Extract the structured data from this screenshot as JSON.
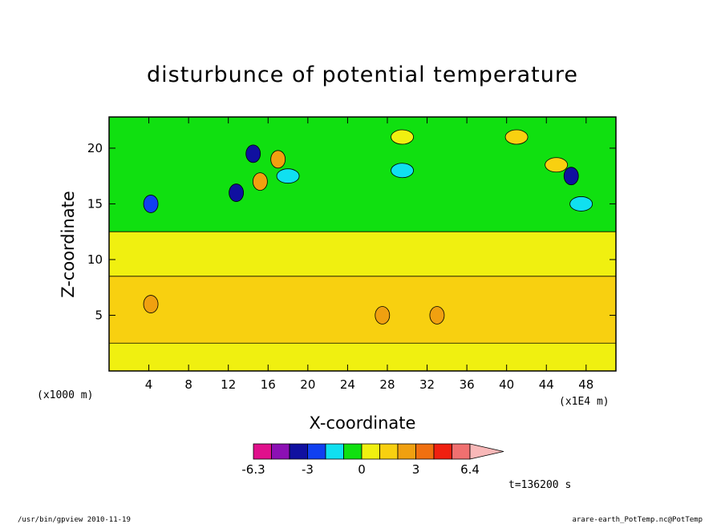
{
  "figure": {
    "title": "disturbunce of potential temperature",
    "time_label": "t=136200 s",
    "footer_left": "/usr/bin/gpview  2010-11-19",
    "footer_right": "arare-earth_PotTemp.nc@PotTemp"
  },
  "chart_data": {
    "type": "heatmap",
    "title": "disturbunce of potential temperature",
    "xlabel": "X-coordinate",
    "ylabel": "Z-coordinate",
    "x_unit_left": "(x1000 m)",
    "x_unit_right": "(x1E4 m)",
    "xlim": [
      0,
      51
    ],
    "ylim": [
      0,
      22.8
    ],
    "x_ticks": [
      4,
      8,
      12,
      16,
      20,
      24,
      28,
      32,
      36,
      40,
      44,
      48
    ],
    "y_ticks": [
      5,
      10,
      15,
      20
    ],
    "colorbar": {
      "levels": [
        -6.3,
        -5,
        -4,
        -3,
        -2,
        -1,
        0,
        1,
        2,
        3,
        4,
        5,
        6.4
      ],
      "tick_labels": [
        "-6.3",
        "-3",
        "0",
        "3",
        "6.4"
      ],
      "tick_values": [
        -6.3,
        -3,
        0,
        3,
        6.4
      ],
      "colors": [
        "#e0108c",
        "#8c10b4",
        "#1010a0",
        "#1040f0",
        "#10e0f0",
        "#10e010",
        "#f0f010",
        "#f8d010",
        "#f0a010",
        "#f07010",
        "#f02010",
        "#f07070",
        "#f8b8b8"
      ]
    },
    "bands": [
      {
        "z": [
          0,
          2.5
        ],
        "value": 0.5
      },
      {
        "z": [
          2.5,
          8.5
        ],
        "value": 1.5
      },
      {
        "z": [
          8.5,
          12.5
        ],
        "value": 0.5
      },
      {
        "z": [
          12.5,
          22.8
        ],
        "value": -0.5
      }
    ],
    "features": [
      {
        "x": 4.2,
        "z": 15.0,
        "value": -2.5
      },
      {
        "x": 4.2,
        "z": 6.0,
        "value": 2.5
      },
      {
        "x": 14.5,
        "z": 19.5,
        "value": -3.2
      },
      {
        "x": 12.8,
        "z": 16.0,
        "value": -3.2
      },
      {
        "x": 15.2,
        "z": 17.0,
        "value": 2.2
      },
      {
        "x": 17.0,
        "z": 19.0,
        "value": 2.2
      },
      {
        "x": 18.0,
        "z": 17.5,
        "value": -1.2
      },
      {
        "x": 29.5,
        "z": 18.0,
        "value": -1.8
      },
      {
        "x": 29.5,
        "z": 21.0,
        "value": 0.5
      },
      {
        "x": 27.5,
        "z": 5.0,
        "value": 2.5
      },
      {
        "x": 33.0,
        "z": 5.0,
        "value": 2.5
      },
      {
        "x": 41.0,
        "z": 21.0,
        "value": 1.5
      },
      {
        "x": 45.0,
        "z": 18.5,
        "value": 1.5
      },
      {
        "x": 46.5,
        "z": 17.5,
        "value": -3.2
      },
      {
        "x": 47.5,
        "z": 15.0,
        "value": -1.2
      }
    ]
  }
}
